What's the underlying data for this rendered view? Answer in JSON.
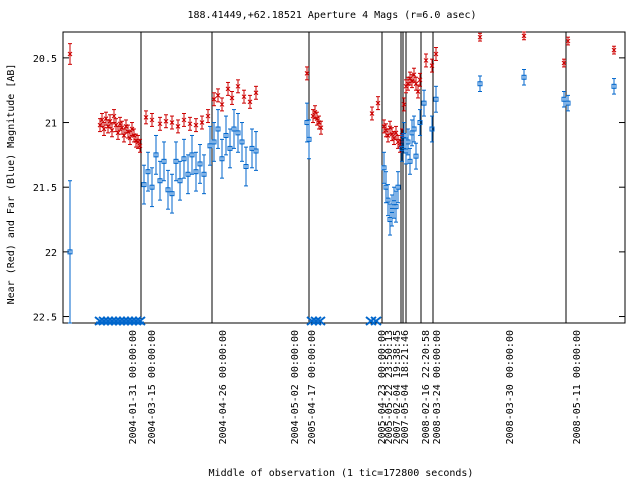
{
  "chart_data": {
    "type": "scatter",
    "title": "188.41449,+62.18521   Aperture 4 Mags (r=6.0 asec)",
    "xlabel": "Middle of observation (1 tic=172800 seconds)",
    "ylabel": "Near (Red) and Far (Blue) Magnitude [AB]",
    "y_axis": {
      "inverted": true,
      "ylim": [
        20.3,
        22.55
      ],
      "ticks": [
        20.5,
        21,
        21.5,
        22,
        22.5
      ]
    },
    "grid": false,
    "x_tick_labels": [
      "2004-01-31 00:00:00",
      "2004-03-15 00:00:00",
      "2004-04-26 00:00:00",
      "2004-05-02 00:00:00",
      "2005-04-17 00:00:00",
      "2005-04-23 00:00:00",
      "2005-05-22 23:50:13",
      "2007-02-04 19:38:45",
      "2007-05-04 18:21:46",
      "2008-02-16 22:20:58",
      "2008-03-24 00:00:00",
      "2008-03-30 00:00:00",
      "2008-05-11 00:00:00"
    ],
    "series": [
      {
        "color": "#cc0000",
        "marker": "x",
        "points": [
          [
            70,
            20.47,
            0.08
          ],
          [
            100,
            21.02,
            0.05
          ],
          [
            102,
            20.98,
            0.05
          ],
          [
            104,
            21.05,
            0.05
          ],
          [
            106,
            20.97,
            0.05
          ],
          [
            108,
            21.03,
            0.05
          ],
          [
            110,
            20.99,
            0.05
          ],
          [
            112,
            21.06,
            0.05
          ],
          [
            114,
            20.95,
            0.05
          ],
          [
            116,
            21.02,
            0.05
          ],
          [
            118,
            21.08,
            0.05
          ],
          [
            120,
            21.01,
            0.05
          ],
          [
            122,
            21.04,
            0.05
          ],
          [
            124,
            21.1,
            0.05
          ],
          [
            126,
            21.03,
            0.05
          ],
          [
            128,
            21.07,
            0.05
          ],
          [
            130,
            21.12,
            0.05
          ],
          [
            132,
            21.05,
            0.05
          ],
          [
            134,
            21.1,
            0.05
          ],
          [
            136,
            21.14,
            0.05
          ],
          [
            138,
            21.15,
            0.05
          ],
          [
            140,
            21.18,
            0.05
          ],
          [
            146,
            20.96,
            0.05
          ],
          [
            152,
            20.98,
            0.05
          ],
          [
            160,
            21.01,
            0.05
          ],
          [
            166,
            20.99,
            0.05
          ],
          [
            172,
            21.0,
            0.05
          ],
          [
            178,
            21.03,
            0.05
          ],
          [
            184,
            20.98,
            0.05
          ],
          [
            190,
            21.01,
            0.05
          ],
          [
            196,
            21.02,
            0.05
          ],
          [
            202,
            21.0,
            0.05
          ],
          [
            208,
            20.95,
            0.05
          ],
          [
            214,
            20.82,
            0.05
          ],
          [
            218,
            20.79,
            0.05
          ],
          [
            222,
            20.86,
            0.05
          ],
          [
            228,
            20.74,
            0.05
          ],
          [
            232,
            20.81,
            0.05
          ],
          [
            238,
            20.72,
            0.05
          ],
          [
            244,
            20.8,
            0.05
          ],
          [
            250,
            20.84,
            0.05
          ],
          [
            256,
            20.77,
            0.05
          ],
          [
            307,
            20.62,
            0.05
          ],
          [
            313,
            20.95,
            0.05
          ],
          [
            315,
            20.92,
            0.05
          ],
          [
            317,
            20.97,
            0.05
          ],
          [
            319,
            21.0,
            0.05
          ],
          [
            321,
            21.04,
            0.05
          ],
          [
            372,
            20.93,
            0.05
          ],
          [
            378,
            20.85,
            0.05
          ],
          [
            384,
            21.03,
            0.05
          ],
          [
            386,
            21.06,
            0.05
          ],
          [
            388,
            21.1,
            0.05
          ],
          [
            390,
            21.04,
            0.05
          ],
          [
            392,
            21.09,
            0.05
          ],
          [
            394,
            21.12,
            0.05
          ],
          [
            396,
            21.08,
            0.05
          ],
          [
            398,
            21.15,
            0.05
          ],
          [
            400,
            21.18,
            0.05
          ],
          [
            402,
            21.1,
            0.05
          ],
          [
            404,
            20.86,
            0.05
          ],
          [
            406,
            20.72,
            0.05
          ],
          [
            408,
            20.7,
            0.05
          ],
          [
            410,
            20.66,
            0.05
          ],
          [
            412,
            20.68,
            0.05
          ],
          [
            414,
            20.63,
            0.05
          ],
          [
            416,
            20.7,
            0.05
          ],
          [
            418,
            20.76,
            0.05
          ],
          [
            420,
            20.67,
            0.05
          ],
          [
            426,
            20.52,
            0.05
          ],
          [
            432,
            20.56,
            0.05
          ],
          [
            436,
            20.47,
            0.05
          ],
          [
            480,
            20.34,
            0.03
          ],
          [
            524,
            20.33,
            0.03
          ],
          [
            564,
            20.54,
            0.03
          ],
          [
            568,
            20.37,
            0.03
          ],
          [
            614,
            20.44,
            0.03
          ]
        ]
      },
      {
        "color": "#0066cc",
        "marker": "square",
        "points": [
          [
            70,
            22.0,
            0.55
          ],
          [
            144,
            21.48,
            0.15
          ],
          [
            148,
            21.38,
            0.15
          ],
          [
            152,
            21.5,
            0.15
          ],
          [
            156,
            21.25,
            0.15
          ],
          [
            160,
            21.45,
            0.15
          ],
          [
            164,
            21.3,
            0.15
          ],
          [
            168,
            21.52,
            0.15
          ],
          [
            172,
            21.55,
            0.15
          ],
          [
            176,
            21.3,
            0.15
          ],
          [
            180,
            21.45,
            0.15
          ],
          [
            184,
            21.28,
            0.15
          ],
          [
            188,
            21.4,
            0.15
          ],
          [
            192,
            21.25,
            0.15
          ],
          [
            196,
            21.38,
            0.15
          ],
          [
            200,
            21.32,
            0.15
          ],
          [
            204,
            21.4,
            0.15
          ],
          [
            210,
            21.18,
            0.15
          ],
          [
            214,
            21.15,
            0.15
          ],
          [
            218,
            21.05,
            0.15
          ],
          [
            222,
            21.28,
            0.15
          ],
          [
            226,
            21.1,
            0.15
          ],
          [
            230,
            21.2,
            0.15
          ],
          [
            234,
            21.05,
            0.15
          ],
          [
            238,
            21.08,
            0.15
          ],
          [
            242,
            21.15,
            0.15
          ],
          [
            246,
            21.34,
            0.15
          ],
          [
            252,
            21.2,
            0.15
          ],
          [
            256,
            21.22,
            0.15
          ],
          [
            307,
            21.0,
            0.15
          ],
          [
            309,
            21.13,
            0.15
          ],
          [
            384,
            21.35,
            0.12
          ],
          [
            386,
            21.5,
            0.12
          ],
          [
            388,
            21.6,
            0.12
          ],
          [
            390,
            21.75,
            0.12
          ],
          [
            392,
            21.68,
            0.12
          ],
          [
            394,
            21.62,
            0.12
          ],
          [
            396,
            21.65,
            0.12
          ],
          [
            398,
            21.5,
            0.12
          ],
          [
            402,
            21.2,
            0.1
          ],
          [
            404,
            21.1,
            0.1
          ],
          [
            406,
            21.22,
            0.1
          ],
          [
            408,
            21.15,
            0.1
          ],
          [
            410,
            21.3,
            0.1
          ],
          [
            412,
            21.08,
            0.1
          ],
          [
            414,
            21.05,
            0.1
          ],
          [
            416,
            21.26,
            0.1
          ],
          [
            420,
            21.0,
            0.1
          ],
          [
            424,
            20.85,
            0.1
          ],
          [
            432,
            21.05,
            0.1
          ],
          [
            436,
            20.82,
            0.1
          ],
          [
            480,
            20.7,
            0.06
          ],
          [
            524,
            20.65,
            0.06
          ],
          [
            564,
            20.82,
            0.06
          ],
          [
            568,
            20.85,
            0.06
          ],
          [
            614,
            20.72,
            0.06
          ]
        ]
      }
    ],
    "vertical_lines": [
      141,
      212,
      309,
      382,
      401,
      403,
      406,
      421,
      433,
      566
    ],
    "cluster_markers": [
      100,
      104,
      108,
      112,
      116,
      120,
      124,
      128,
      132,
      136,
      140,
      312,
      316,
      320,
      371,
      376
    ]
  }
}
